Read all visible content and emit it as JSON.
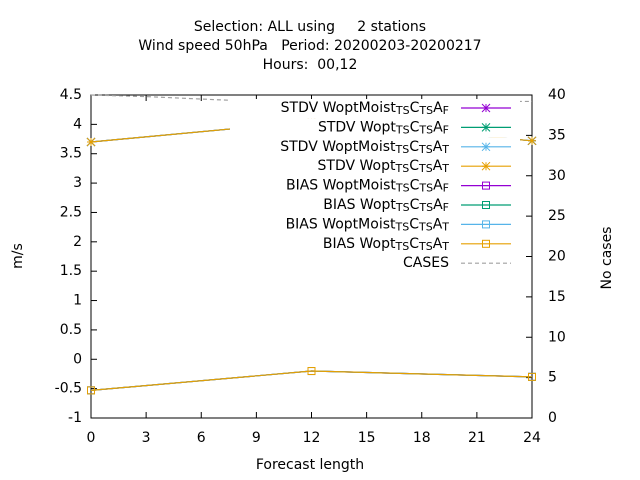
{
  "chart_data": {
    "type": "line",
    "title": [
      "Selection: ALL using     2 stations",
      "Wind speed 50hPa   Period: 20200203-20200217",
      "Hours:  00,12"
    ],
    "xlabel": "Forecast length",
    "ylabel": "m/s",
    "y2label": "No cases",
    "xlim": [
      0,
      24
    ],
    "xticks": [
      0,
      3,
      6,
      9,
      12,
      15,
      18,
      21,
      24
    ],
    "ylim": [
      -1,
      4.5
    ],
    "yticks": [
      -1,
      -0.5,
      0,
      0.5,
      1,
      1.5,
      2,
      2.5,
      3,
      3.5,
      4,
      4.5
    ],
    "y2lim": [
      0,
      40
    ],
    "y2ticks": [
      0,
      5,
      10,
      15,
      20,
      25,
      30,
      35,
      40
    ],
    "legend": "top-right",
    "series": [
      {
        "name": "STDV WoptMoist_{TS}C_{TS}A_{F}",
        "color": "#9400d3",
        "marker": "star",
        "x": [
          0,
          12,
          24
        ],
        "values": [
          3.7,
          4.05,
          3.72
        ]
      },
      {
        "name": "STDV Wopt_{TS}C_{TS}A_{F}",
        "color": "#009e73",
        "marker": "star",
        "x": [
          0,
          12,
          24
        ],
        "values": [
          3.7,
          4.05,
          3.72
        ]
      },
      {
        "name": "STDV WoptMoist_{TS}C_{TS}A_{T}",
        "color": "#56b4e9",
        "marker": "star",
        "x": [
          0,
          12,
          24
        ],
        "values": [
          3.7,
          4.05,
          3.72
        ]
      },
      {
        "name": "STDV Wopt_{TS}C_{TS}A_{T}",
        "color": "#e69f00",
        "marker": "star",
        "x": [
          0,
          12,
          24
        ],
        "values": [
          3.7,
          4.05,
          3.72
        ]
      },
      {
        "name": "BIAS WoptMoist_{TS}C_{TS}A_{F}",
        "color": "#9400d3",
        "marker": "square",
        "x": [
          0,
          12,
          24
        ],
        "values": [
          -0.53,
          -0.2,
          -0.3
        ]
      },
      {
        "name": "BIAS Wopt_{TS}C_{TS}A_{F}",
        "color": "#009e73",
        "marker": "square",
        "x": [
          0,
          12,
          24
        ],
        "values": [
          -0.53,
          -0.2,
          -0.3
        ]
      },
      {
        "name": "BIAS WoptMoist_{TS}C_{TS}A_{T}",
        "color": "#56b4e9",
        "marker": "square",
        "x": [
          0,
          12,
          24
        ],
        "values": [
          -0.53,
          -0.2,
          -0.3
        ]
      },
      {
        "name": "BIAS Wopt_{TS}C_{TS}A_{T}",
        "color": "#e69f00",
        "marker": "square",
        "x": [
          0,
          12,
          24
        ],
        "values": [
          -0.53,
          -0.2,
          -0.3
        ]
      },
      {
        "name": "CASES",
        "color": "#a0a0a0",
        "dashed": true,
        "axis": "y2",
        "x": [
          0,
          3,
          6,
          9,
          12,
          15,
          18,
          21,
          24
        ],
        "values": [
          40,
          39.8,
          39.5,
          39.2,
          39.2,
          39.2,
          39.2,
          39.2,
          39.2
        ]
      }
    ]
  }
}
